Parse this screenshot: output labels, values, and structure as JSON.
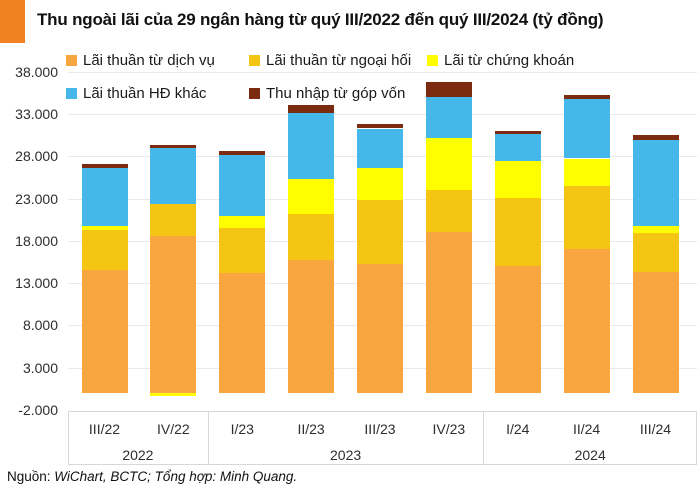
{
  "header": {
    "title": "Thu ngoài lãi của 29 ngân hàng từ quý III/2022 đến quý III/2024 (tỷ đồng)",
    "logo_color": "#F28122"
  },
  "chart_data": {
    "type": "bar",
    "stacked": true,
    "title": "Thu ngoài lãi của 29 ngân hàng từ quý III/2022 đến quý III/2024 (tỷ đồng)",
    "unit": "tỷ đồng",
    "categories": [
      "III/22",
      "IV/22",
      "I/23",
      "II/23",
      "III/23",
      "IV/23",
      "I/24",
      "II/24",
      "III/24"
    ],
    "year_groups": [
      {
        "label": "2022",
        "count": 2
      },
      {
        "label": "2023",
        "count": 4
      },
      {
        "label": "2024",
        "count": 3
      }
    ],
    "series": [
      {
        "name": "Lãi thuần từ dịch vụ",
        "color": "#F9A640",
        "values": [
          14550,
          18600,
          14250,
          15750,
          15250,
          19100,
          15000,
          17100,
          14300
        ]
      },
      {
        "name": "Lãi thuần từ ngoại hối",
        "color": "#F4C513",
        "values": [
          4750,
          3750,
          5300,
          5400,
          7600,
          4950,
          8050,
          7400,
          4600
        ]
      },
      {
        "name": "Lãi từ chứng khoán",
        "color": "#FEFE00",
        "values": [
          450,
          -400,
          1400,
          4150,
          3750,
          6100,
          4400,
          3250,
          850
        ]
      },
      {
        "name": "Lãi thuần HĐ khác",
        "color": "#45B7E8",
        "values": [
          6900,
          6650,
          7250,
          7800,
          4700,
          4900,
          3200,
          7000,
          10150
        ]
      },
      {
        "name": "Thu nhập từ góp vốn",
        "color": "#7C2B11",
        "values": [
          500,
          400,
          500,
          1000,
          550,
          1750,
          400,
          550,
          600
        ]
      }
    ],
    "ylim": [
      -2000,
      38000
    ],
    "yticks": [
      38000,
      33000,
      28000,
      23000,
      18000,
      13000,
      8000,
      3000,
      -2000
    ],
    "ytick_labels": [
      "38.000",
      "33.000",
      "28.000",
      "23.000",
      "18.000",
      "13.000",
      "8.000",
      "3.000",
      "-2.000"
    ],
    "grid": true,
    "legend_position": "top"
  },
  "source": {
    "prefix": "Nguồn: ",
    "detail": "WiChart, BCTC; Tổng hợp: Minh Quang."
  }
}
